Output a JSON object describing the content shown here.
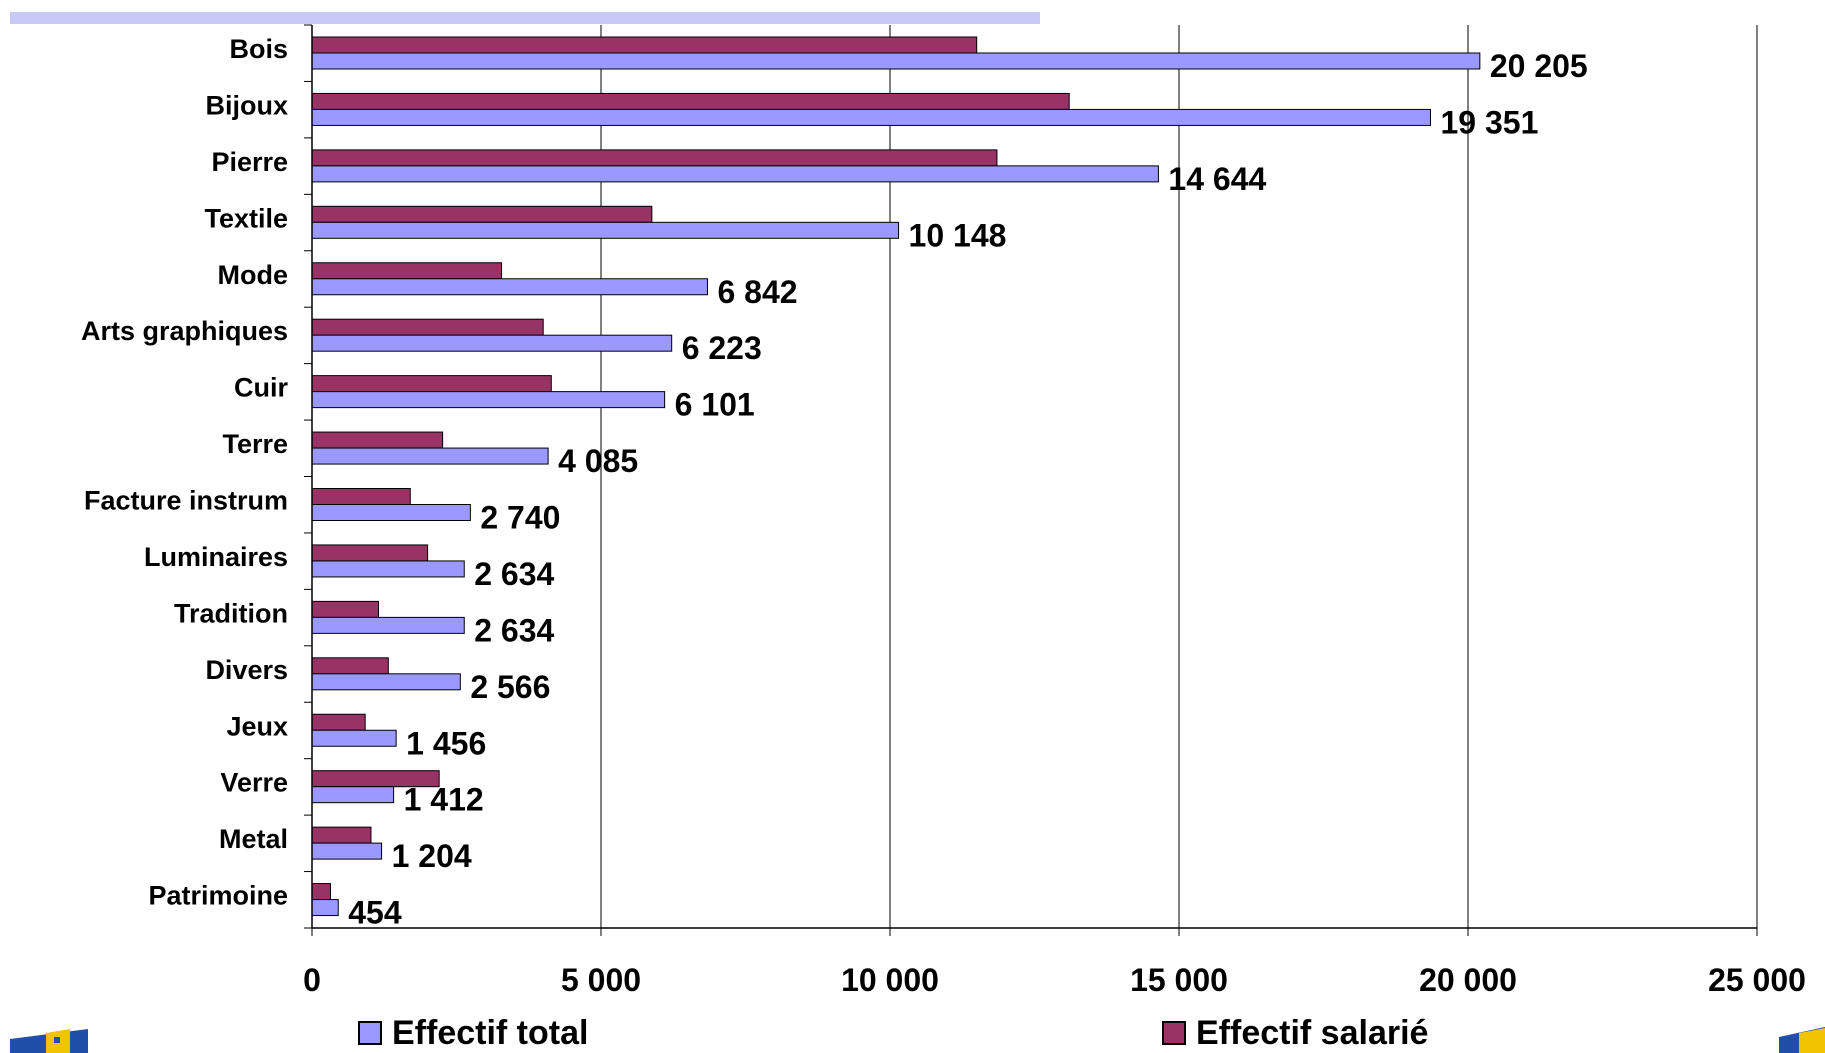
{
  "chart_data": {
    "type": "bar",
    "orientation": "horizontal",
    "categories": [
      "Bois",
      "Bijoux",
      "Pierre",
      "Textile",
      "Mode",
      "Arts graphiques",
      "Cuir",
      "Terre",
      "Facture instrum",
      "Luminaires",
      "Tradition",
      "Divers",
      "Jeux",
      "Verre",
      "Metal",
      "Patrimoine"
    ],
    "series": [
      {
        "name": "Effectif salarié",
        "color": "#993366",
        "values": [
          11500,
          13100,
          11850,
          5880,
          3280,
          4000,
          4140,
          2260,
          1700,
          2000,
          1150,
          1320,
          920,
          2200,
          1020,
          320
        ]
      },
      {
        "name": "Effectif total",
        "color": "#9999ff",
        "values": [
          20205,
          19351,
          14644,
          10148,
          6842,
          6223,
          6101,
          4085,
          2740,
          2634,
          2634,
          2566,
          1456,
          1412,
          1204,
          454
        ]
      }
    ],
    "value_labels": [
      "20 205",
      "19 351",
      "14 644",
      "10 148",
      "6 842",
      "6 223",
      "6 101",
      "4 085",
      "2 740",
      "2 634",
      "2 634",
      "2 566",
      "1 456",
      "1 412",
      "1 204",
      "454"
    ],
    "xlim": [
      0,
      25000
    ],
    "x_ticks": [
      0,
      5000,
      10000,
      15000,
      20000,
      25000
    ],
    "x_tick_labels": [
      "0",
      "5 000",
      "10 000",
      "15 000",
      "20 000",
      "25 000"
    ],
    "grid": "vertical",
    "legend_position": "bottom",
    "legend": [
      {
        "label": "Effectif total",
        "color": "#9999ff"
      },
      {
        "label": "Effectif salarié",
        "color": "#993366"
      }
    ]
  }
}
